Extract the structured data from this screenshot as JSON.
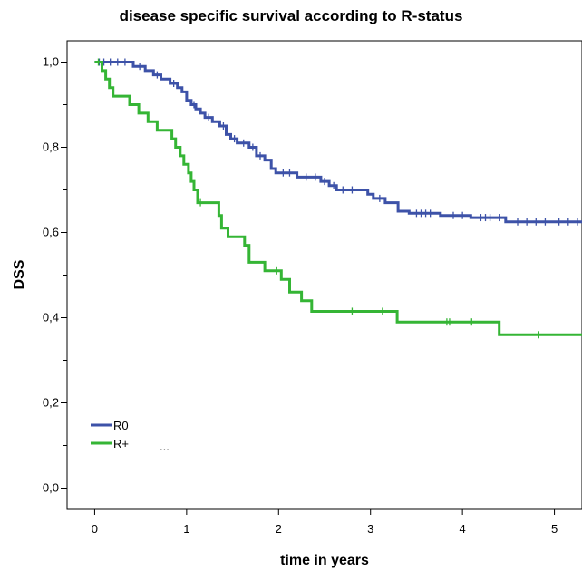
{
  "chart_data": {
    "type": "line",
    "title": "disease specific survival according to R-status",
    "xlabel": "time in years",
    "ylabel": "DSS",
    "xlim": [
      -0.3,
      5.3
    ],
    "ylim": [
      -0.05,
      1.05
    ],
    "x_ticks": [
      "0",
      "1",
      "2",
      "3",
      "4",
      "5"
    ],
    "x_tick_values": [
      0,
      1,
      2,
      3,
      4,
      5
    ],
    "y_ticks": [
      "0,0",
      "0,2",
      "0,4",
      "0,6",
      "0,8",
      "1,0"
    ],
    "y_tick_values": [
      0,
      0.2,
      0.4,
      0.6,
      0.8,
      1.0
    ],
    "grid": false,
    "legend_position": "bottom-left",
    "legend_extra_text": "...",
    "series": [
      {
        "name": "R0",
        "color": "#3d52a8",
        "step": [
          [
            0.0,
            1.0
          ],
          [
            0.42,
            0.99
          ],
          [
            0.55,
            0.98
          ],
          [
            0.64,
            0.97
          ],
          [
            0.72,
            0.96
          ],
          [
            0.82,
            0.95
          ],
          [
            0.9,
            0.94
          ],
          [
            0.95,
            0.93
          ],
          [
            1.0,
            0.91
          ],
          [
            1.05,
            0.9
          ],
          [
            1.1,
            0.89
          ],
          [
            1.15,
            0.88
          ],
          [
            1.2,
            0.87
          ],
          [
            1.28,
            0.86
          ],
          [
            1.36,
            0.85
          ],
          [
            1.43,
            0.83
          ],
          [
            1.48,
            0.82
          ],
          [
            1.55,
            0.81
          ],
          [
            1.68,
            0.8
          ],
          [
            1.76,
            0.78
          ],
          [
            1.85,
            0.77
          ],
          [
            1.92,
            0.75
          ],
          [
            1.97,
            0.74
          ],
          [
            2.2,
            0.73
          ],
          [
            2.46,
            0.72
          ],
          [
            2.55,
            0.71
          ],
          [
            2.63,
            0.7
          ],
          [
            2.97,
            0.69
          ],
          [
            3.03,
            0.68
          ],
          [
            3.16,
            0.67
          ],
          [
            3.3,
            0.65
          ],
          [
            3.42,
            0.645
          ],
          [
            3.76,
            0.64
          ],
          [
            4.09,
            0.635
          ],
          [
            4.47,
            0.625
          ],
          [
            5.3,
            0.625
          ]
        ],
        "censor_x": [
          0.05,
          0.1,
          0.17,
          0.25,
          0.33,
          0.49,
          0.68,
          0.86,
          1.08,
          1.24,
          1.4,
          1.52,
          1.62,
          1.72,
          1.8,
          2.05,
          2.12,
          2.3,
          2.4,
          2.5,
          2.6,
          2.7,
          2.8,
          3.1,
          3.5,
          3.55,
          3.6,
          3.65,
          3.9,
          4.0,
          4.2,
          4.25,
          4.3,
          4.4,
          4.6,
          4.7,
          4.8,
          4.9,
          5.05,
          5.15,
          5.25
        ]
      },
      {
        "name": "R+",
        "color": "#35b535",
        "step": [
          [
            0.0,
            1.0
          ],
          [
            0.08,
            0.98
          ],
          [
            0.12,
            0.96
          ],
          [
            0.16,
            0.94
          ],
          [
            0.2,
            0.92
          ],
          [
            0.38,
            0.9
          ],
          [
            0.48,
            0.88
          ],
          [
            0.58,
            0.86
          ],
          [
            0.68,
            0.84
          ],
          [
            0.84,
            0.82
          ],
          [
            0.88,
            0.8
          ],
          [
            0.93,
            0.78
          ],
          [
            0.97,
            0.76
          ],
          [
            1.02,
            0.74
          ],
          [
            1.05,
            0.72
          ],
          [
            1.08,
            0.7
          ],
          [
            1.12,
            0.67
          ],
          [
            1.35,
            0.64
          ],
          [
            1.38,
            0.61
          ],
          [
            1.45,
            0.59
          ],
          [
            1.63,
            0.57
          ],
          [
            1.68,
            0.53
          ],
          [
            1.85,
            0.51
          ],
          [
            2.03,
            0.49
          ],
          [
            2.12,
            0.46
          ],
          [
            2.25,
            0.44
          ],
          [
            2.36,
            0.415
          ],
          [
            3.29,
            0.39
          ],
          [
            4.4,
            0.36
          ],
          [
            5.3,
            0.36
          ]
        ],
        "censor_x": [
          0.04,
          1.15,
          1.98,
          2.8,
          3.13,
          3.83,
          3.86,
          4.1,
          4.83
        ]
      }
    ]
  }
}
